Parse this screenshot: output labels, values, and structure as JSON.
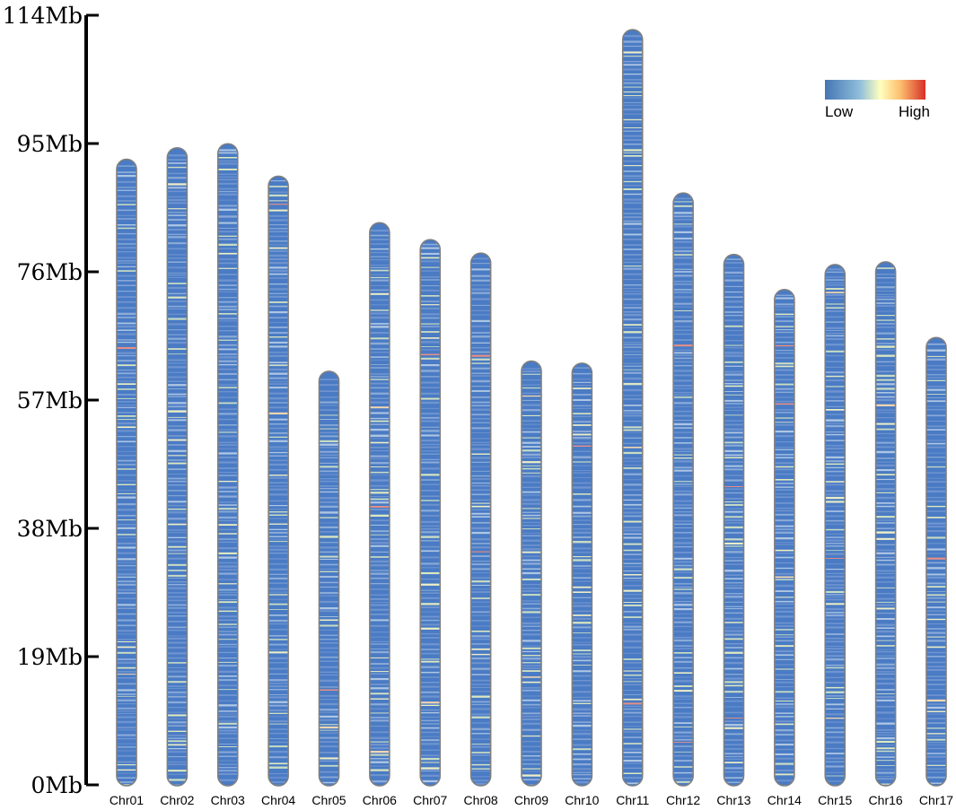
{
  "chart_data": {
    "type": "heatmap",
    "title": "",
    "xlabel": "",
    "ylabel": "",
    "y_unit": "Mb",
    "ylim": [
      0,
      114
    ],
    "y_ticks": [
      {
        "value": 0,
        "label": "0Mb"
      },
      {
        "value": 19,
        "label": "19Mb"
      },
      {
        "value": 38,
        "label": "38Mb"
      },
      {
        "value": 57,
        "label": "57Mb"
      },
      {
        "value": 76,
        "label": "76Mb"
      },
      {
        "value": 95,
        "label": "95Mb"
      },
      {
        "value": 114,
        "label": "114Mb"
      }
    ],
    "categories": [
      "Chr01",
      "Chr02",
      "Chr03",
      "Chr04",
      "Chr05",
      "Chr06",
      "Chr07",
      "Chr08",
      "Chr09",
      "Chr10",
      "Chr11",
      "Chr12",
      "Chr13",
      "Chr14",
      "Chr15",
      "Chr16",
      "Chr17"
    ],
    "chromosome_lengths_mb": [
      92.4,
      94.1,
      94.7,
      89.9,
      61.0,
      83.0,
      80.5,
      78.5,
      62.5,
      62.2,
      111.6,
      87.4,
      78.3,
      73.1,
      76.8,
      77.2,
      66.0
    ],
    "color_scale": {
      "low_label": "Low",
      "high_label": "High",
      "colors": [
        "#4575b4",
        "#91bfdb",
        "#ffffbf",
        "#fc8d59",
        "#d73027"
      ]
    },
    "base_color": "#4a7bc4",
    "outline_color": "#7f7f7f",
    "axis_color": "#000000",
    "legend_position": "top-right"
  }
}
